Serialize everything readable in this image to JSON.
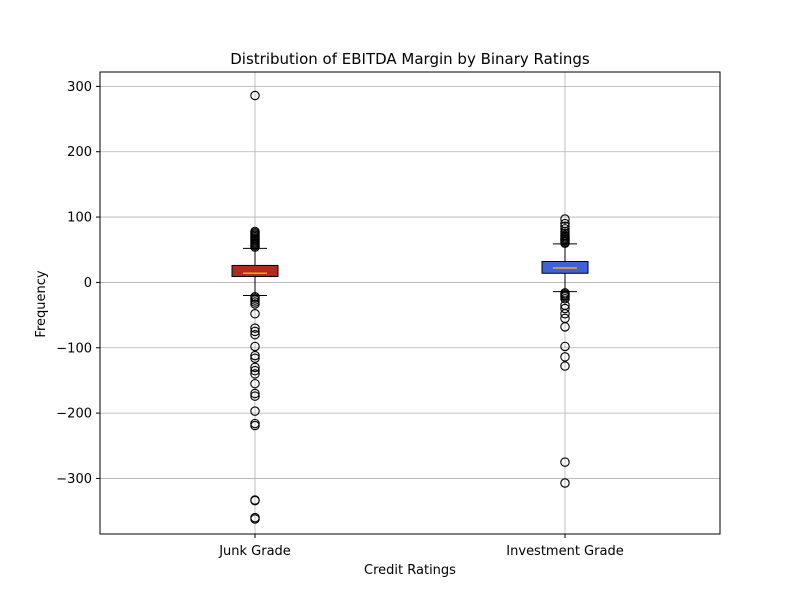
{
  "chart_data": {
    "type": "boxplot",
    "title": "Distribution of EBITDA Margin by Binary Ratings",
    "xlabel": "Credit Ratings",
    "ylabel": "Frequency",
    "ylim": [
      -385,
      322
    ],
    "yticks": [
      -300,
      -200,
      -100,
      0,
      100,
      200,
      300
    ],
    "ytick_labels": [
      "−300",
      "−200",
      "−100",
      "0",
      "100",
      "200",
      "300"
    ],
    "grid": true,
    "categories": [
      "Junk Grade",
      "Investment Grade"
    ],
    "boxes": [
      {
        "name": "Junk Grade",
        "color": "#b22a1e",
        "median_color": "#f5a623",
        "q1": 9,
        "median": 14,
        "q3": 26,
        "whisker_low": -20,
        "whisker_high": 52,
        "outliers": [
          286,
          78,
          76,
          74,
          72,
          70,
          68,
          66,
          64,
          62,
          60,
          58,
          56,
          54,
          -22,
          -24,
          -27,
          -30,
          -33,
          -48,
          -70,
          -75,
          -80,
          -98,
          -112,
          -116,
          -130,
          -135,
          -140,
          -155,
          -170,
          -174,
          -197,
          -216,
          -219,
          -333,
          -334,
          -360,
          -362
        ]
      },
      {
        "name": "Investment Grade",
        "color": "#3f62d8",
        "median_color": "#f5a623",
        "q1": 14,
        "median": 22,
        "q3": 32,
        "whisker_low": -14,
        "whisker_high": 59,
        "outliers": [
          97,
          90,
          86,
          82,
          78,
          75,
          72,
          70,
          68,
          66,
          64,
          62,
          60,
          -16,
          -18,
          -20,
          -22,
          -25,
          -35,
          -40,
          -48,
          -55,
          -68,
          -98,
          -114,
          -128,
          -275,
          -307
        ]
      }
    ]
  }
}
